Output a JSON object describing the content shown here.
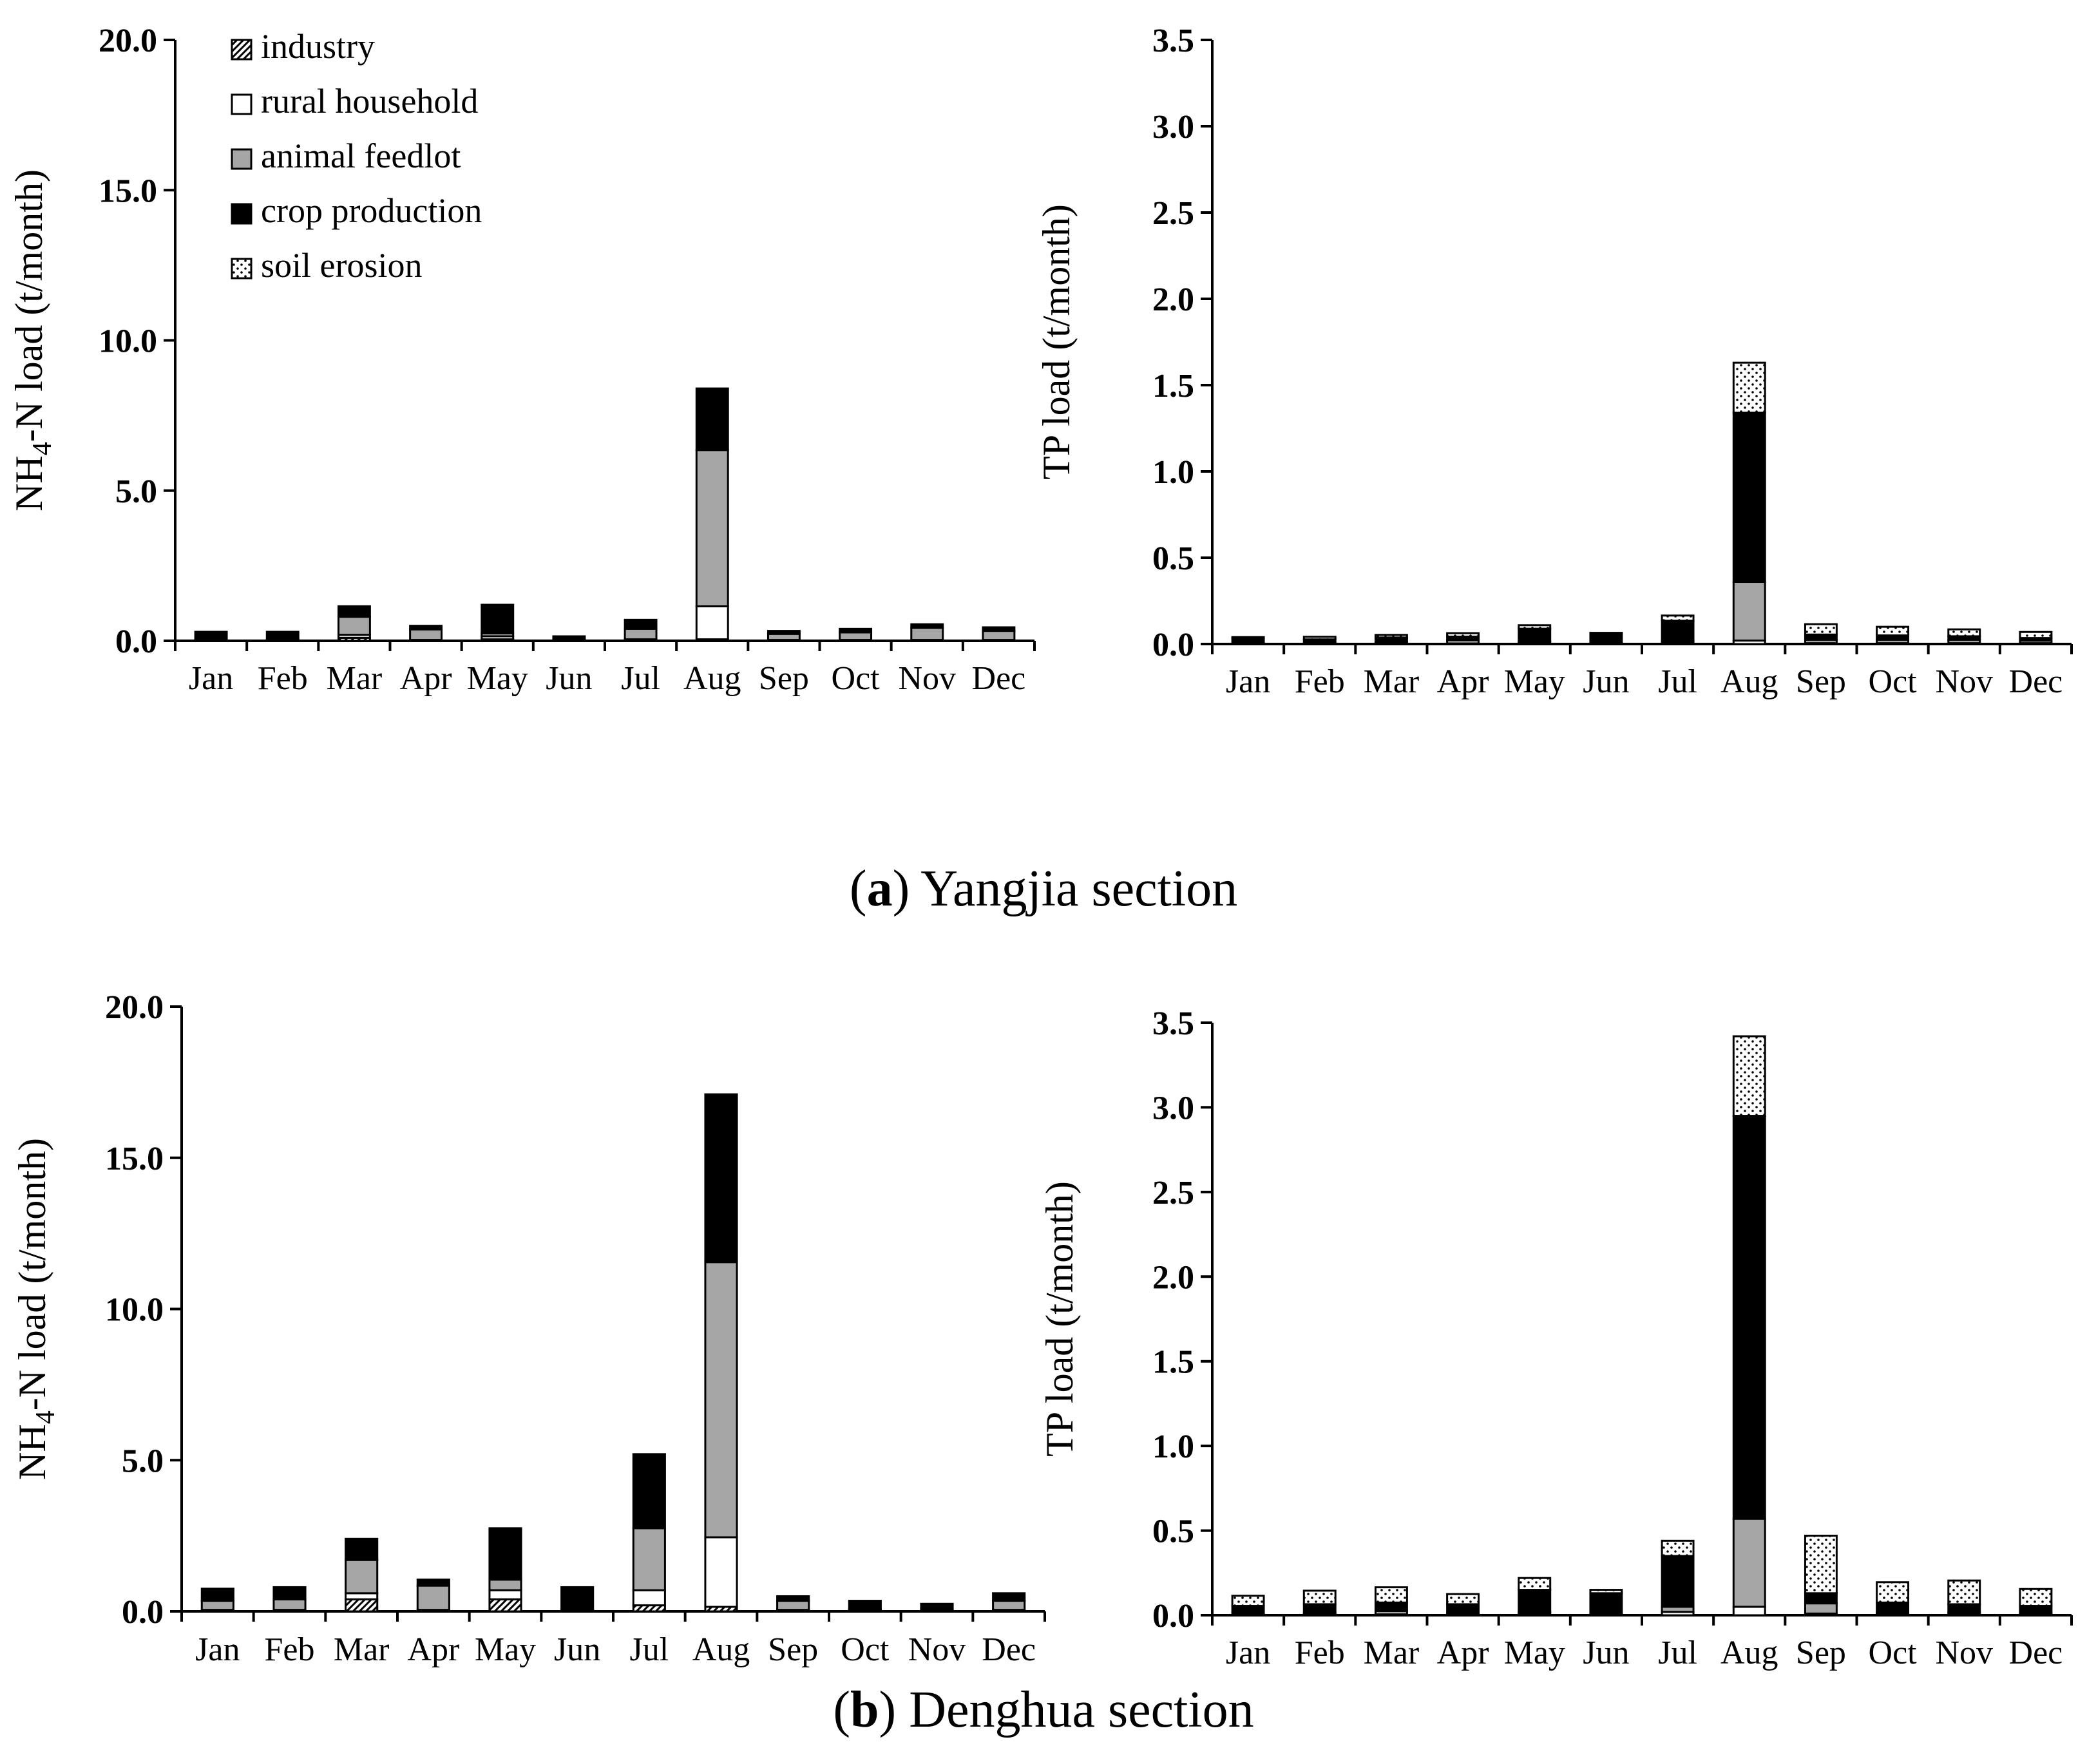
{
  "legend": [
    {
      "key": "industry",
      "label": "industry",
      "pattern": "hatch"
    },
    {
      "key": "rural",
      "label": "rural household",
      "pattern": "white"
    },
    {
      "key": "animal",
      "label": "animal feedlot",
      "pattern": "gray"
    },
    {
      "key": "crop",
      "label": "crop production",
      "pattern": "black"
    },
    {
      "key": "soil",
      "label": "soil erosion",
      "pattern": "dots"
    }
  ],
  "captions": {
    "a_letter": "a",
    "a_text": " Yangjia section",
    "b_letter": "b",
    "b_text": " Denghua section"
  },
  "colors": {
    "black": "#000000",
    "gray": "#a6a6a6",
    "white": "#ffffff"
  },
  "chart_data": [
    {
      "id": "a-nh4",
      "type": "bar",
      "stacked": true,
      "ylabel_main": "NH",
      "ylabel_sub": "4",
      "ylabel_rest": "-N load (t/month)",
      "ylim": [
        0,
        20
      ],
      "yticks": [
        0,
        5,
        10,
        15,
        20
      ],
      "tick_decimals": 1,
      "categories": [
        "Jan",
        "Feb",
        "Mar",
        "Apr",
        "May",
        "Jun",
        "Jul",
        "Aug",
        "Sep",
        "Oct",
        "Nov",
        "Dec"
      ],
      "series": [
        {
          "name": "industry",
          "values": [
            0,
            0,
            0.1,
            0,
            0.05,
            0,
            0,
            0.05,
            0,
            0,
            0,
            0
          ]
        },
        {
          "name": "rural household",
          "values": [
            0.02,
            0.02,
            0.1,
            0.03,
            0.1,
            0.02,
            0.05,
            1.1,
            0.03,
            0.03,
            0.03,
            0.03
          ]
        },
        {
          "name": "animal feedlot",
          "values": [
            0.03,
            0.03,
            0.6,
            0.35,
            0.1,
            0.02,
            0.35,
            5.2,
            0.2,
            0.25,
            0.4,
            0.3
          ]
        },
        {
          "name": "crop production",
          "values": [
            0.25,
            0.25,
            0.35,
            0.12,
            0.95,
            0.11,
            0.3,
            2.05,
            0.1,
            0.12,
            0.12,
            0.12
          ]
        },
        {
          "name": "soil erosion",
          "values": [
            0,
            0,
            0,
            0,
            0,
            0,
            0,
            0,
            0,
            0,
            0,
            0
          ]
        }
      ]
    },
    {
      "id": "a-tp",
      "type": "bar",
      "stacked": true,
      "ylabel_main": "TP load (t/month)",
      "ylabel_sub": "",
      "ylabel_rest": "",
      "ylim": [
        0,
        3.5
      ],
      "yticks": [
        0,
        0.5,
        1,
        1.5,
        2,
        2.5,
        3,
        3.5
      ],
      "tick_decimals": 1,
      "categories": [
        "Jan",
        "Feb",
        "Mar",
        "Apr",
        "May",
        "Jun",
        "Jul",
        "Aug",
        "Sep",
        "Oct",
        "Nov",
        "Dec"
      ],
      "series": [
        {
          "name": "industry",
          "values": [
            0,
            0,
            0,
            0,
            0,
            0,
            0,
            0,
            0,
            0,
            0,
            0
          ]
        },
        {
          "name": "rural household",
          "values": [
            0.002,
            0.002,
            0.003,
            0.003,
            0.004,
            0.002,
            0.005,
            0.02,
            0.005,
            0.005,
            0.005,
            0.005
          ]
        },
        {
          "name": "animal feedlot",
          "values": [
            0.003,
            0.005,
            0.01,
            0.02,
            0.01,
            0.003,
            0.01,
            0.34,
            0.02,
            0.02,
            0.02,
            0.015
          ]
        },
        {
          "name": "crop production",
          "values": [
            0.03,
            0.02,
            0.025,
            0.02,
            0.075,
            0.055,
            0.12,
            0.98,
            0.03,
            0.025,
            0.02,
            0.015
          ]
        },
        {
          "name": "soil erosion",
          "values": [
            0.005,
            0.015,
            0.015,
            0.02,
            0.02,
            0.005,
            0.03,
            0.29,
            0.06,
            0.05,
            0.04,
            0.035
          ]
        }
      ]
    },
    {
      "id": "b-nh4",
      "type": "bar",
      "stacked": true,
      "ylabel_main": "NH",
      "ylabel_sub": "4",
      "ylabel_rest": "-N load (t/month)",
      "ylim": [
        0,
        20
      ],
      "yticks": [
        0,
        5,
        10,
        15,
        20
      ],
      "tick_decimals": 1,
      "categories": [
        "Jan",
        "Feb",
        "Mar",
        "Apr",
        "May",
        "Jun",
        "Jul",
        "Aug",
        "Sep",
        "Oct",
        "Nov",
        "Dec"
      ],
      "series": [
        {
          "name": "industry",
          "values": [
            0,
            0,
            0.4,
            0,
            0.4,
            0,
            0.2,
            0.15,
            0,
            0,
            0,
            0
          ]
        },
        {
          "name": "rural household",
          "values": [
            0.05,
            0.05,
            0.2,
            0.05,
            0.3,
            0.02,
            0.5,
            2.3,
            0.05,
            0.02,
            0.02,
            0.05
          ]
        },
        {
          "name": "animal feedlot",
          "values": [
            0.3,
            0.35,
            1.1,
            0.8,
            0.35,
            0.03,
            2.05,
            9.1,
            0.3,
            0.05,
            0.05,
            0.3
          ]
        },
        {
          "name": "crop production",
          "values": [
            0.4,
            0.4,
            0.7,
            0.2,
            1.7,
            0.75,
            2.45,
            5.55,
            0.15,
            0.28,
            0.18,
            0.25
          ]
        },
        {
          "name": "soil erosion",
          "values": [
            0,
            0,
            0,
            0,
            0,
            0,
            0,
            0,
            0,
            0,
            0,
            0
          ]
        }
      ]
    },
    {
      "id": "b-tp",
      "type": "bar",
      "stacked": true,
      "ylabel_main": "TP load (t/month)",
      "ylabel_sub": "",
      "ylabel_rest": "",
      "ylim": [
        0,
        3.5
      ],
      "yticks": [
        0,
        0.5,
        1,
        1.5,
        2,
        2.5,
        3,
        3.5
      ],
      "tick_decimals": 1,
      "categories": [
        "Jan",
        "Feb",
        "Mar",
        "Apr",
        "May",
        "Jun",
        "Jul",
        "Aug",
        "Sep",
        "Oct",
        "Nov",
        "Dec"
      ],
      "series": [
        {
          "name": "industry",
          "values": [
            0,
            0,
            0,
            0,
            0,
            0,
            0,
            0,
            0,
            0,
            0,
            0
          ]
        },
        {
          "name": "rural household",
          "values": [
            0.005,
            0.005,
            0.005,
            0.005,
            0.01,
            0.005,
            0.02,
            0.05,
            0.01,
            0.005,
            0.005,
            0.005
          ]
        },
        {
          "name": "animal feedlot",
          "values": [
            0.01,
            0.01,
            0.02,
            0.01,
            0.01,
            0.005,
            0.03,
            0.52,
            0.06,
            0.01,
            0.01,
            0.01
          ]
        },
        {
          "name": "crop production",
          "values": [
            0.04,
            0.05,
            0.05,
            0.05,
            0.13,
            0.12,
            0.3,
            2.38,
            0.06,
            0.06,
            0.05,
            0.04
          ]
        },
        {
          "name": "soil erosion",
          "values": [
            0.06,
            0.08,
            0.09,
            0.06,
            0.07,
            0.02,
            0.09,
            0.47,
            0.34,
            0.12,
            0.14,
            0.1
          ]
        }
      ]
    }
  ]
}
